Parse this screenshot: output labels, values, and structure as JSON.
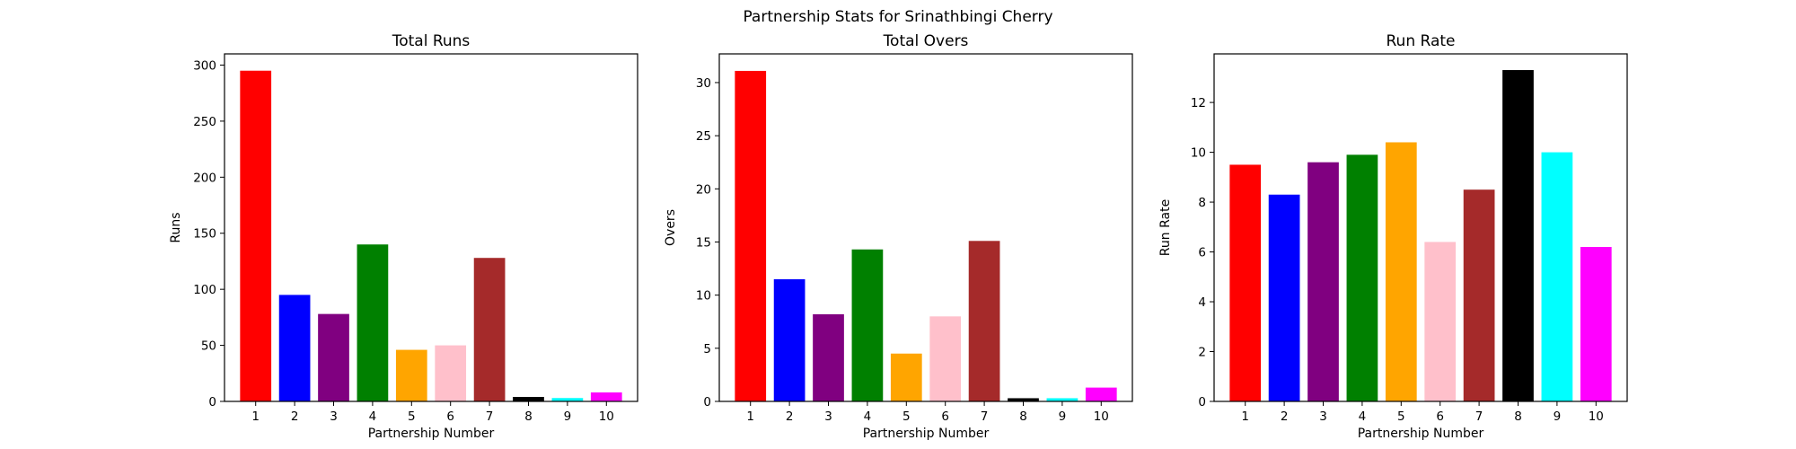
{
  "figure_title": "Partnership Stats for Srinathbingi Cherry",
  "chart_data": [
    {
      "type": "bar",
      "title": "Total Runs",
      "xlabel": "Partnership Number",
      "ylabel": "Runs",
      "categories": [
        "1",
        "2",
        "3",
        "4",
        "5",
        "6",
        "7",
        "8",
        "9",
        "10"
      ],
      "values": [
        295,
        95,
        78,
        140,
        46,
        50,
        128,
        4,
        3,
        8
      ],
      "colors": [
        "#ff0000",
        "#0000ff",
        "#800080",
        "#008000",
        "#ffa500",
        "#ffc0cb",
        "#a52a2a",
        "#000000",
        "#00ffff",
        "#ff00ff"
      ],
      "ylim": [
        0,
        310
      ],
      "yticks": [
        0,
        50,
        100,
        150,
        200,
        250,
        300
      ],
      "grid": false
    },
    {
      "type": "bar",
      "title": "Total Overs",
      "xlabel": "Partnership Number",
      "ylabel": "Overs",
      "categories": [
        "1",
        "2",
        "3",
        "4",
        "5",
        "6",
        "7",
        "8",
        "9",
        "10"
      ],
      "values": [
        31.1,
        11.5,
        8.2,
        14.3,
        4.5,
        8.0,
        15.1,
        0.3,
        0.3,
        1.3
      ],
      "colors": [
        "#ff0000",
        "#0000ff",
        "#800080",
        "#008000",
        "#ffa500",
        "#ffc0cb",
        "#a52a2a",
        "#000000",
        "#00ffff",
        "#ff00ff"
      ],
      "ylim": [
        0,
        32.7
      ],
      "yticks": [
        0,
        5,
        10,
        15,
        20,
        25,
        30
      ],
      "grid": false
    },
    {
      "type": "bar",
      "title": "Run Rate",
      "xlabel": "Partnership Number",
      "ylabel": "Run Rate",
      "categories": [
        "1",
        "2",
        "3",
        "4",
        "5",
        "6",
        "7",
        "8",
        "9",
        "10"
      ],
      "values": [
        9.5,
        8.3,
        9.6,
        9.9,
        10.4,
        6.4,
        8.5,
        13.3,
        10.0,
        6.2
      ],
      "colors": [
        "#ff0000",
        "#0000ff",
        "#800080",
        "#008000",
        "#ffa500",
        "#ffc0cb",
        "#a52a2a",
        "#000000",
        "#00ffff",
        "#ff00ff"
      ],
      "ylim": [
        0,
        13.95
      ],
      "yticks": [
        0,
        2,
        4,
        6,
        8,
        10,
        12
      ],
      "grid": false
    }
  ]
}
